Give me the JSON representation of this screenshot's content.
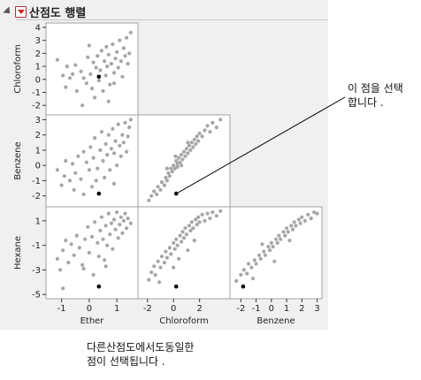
{
  "report": {
    "title": "산점도 행렬",
    "menu_icon": "red-triangle-menu-icon",
    "disclosure_icon": "disclosure-triangle-icon"
  },
  "annotation": {
    "line1": "이 점을 선택",
    "line2": "합니다 ."
  },
  "caption": {
    "line1": "다른산점도에서도동일한",
    "line2": "점이 선택됩니다 ."
  },
  "colors": {
    "point": "#a6a6a6",
    "selected": "#000000",
    "background": "#f0f0f0"
  },
  "chart_data": {
    "type": "scatter",
    "title": "산점도 행렬",
    "variables": [
      "Chloroform",
      "Benzene",
      "Hexane"
    ],
    "columns": [
      "Ether",
      "Chloroform",
      "Benzene"
    ],
    "axes": {
      "Ether": {
        "range": [
          -1.5,
          1.7
        ],
        "ticks": [
          -1,
          0,
          1
        ]
      },
      "Chloroform": {
        "range": [
          -2.6,
          4.2
        ],
        "ticks": [
          -2,
          0,
          2
        ],
        "ticks_y": [
          -2,
          -1,
          0,
          1,
          2,
          3,
          4
        ]
      },
      "Benzene": {
        "range": [
          -2.6,
          3.2
        ],
        "ticks": [
          -2,
          -1,
          0,
          1,
          2,
          3
        ],
        "ticks_y": [
          -2,
          -1,
          0,
          1,
          2,
          3
        ]
      },
      "Hexane": {
        "range": [
          -5.2,
          2.0
        ],
        "ticks_y": [
          -5,
          -3,
          -1,
          1
        ]
      }
    },
    "selected_point": {
      "Ether": 0.35,
      "Chloroform": 0.2,
      "Benzene": -1.85,
      "Hexane": -4.35
    },
    "panels": [
      {
        "x": "Ether",
        "y": "Chloroform",
        "points": [
          [
            -1.15,
            1.5
          ],
          [
            -0.95,
            0.3
          ],
          [
            -0.85,
            -0.6
          ],
          [
            -0.7,
            0.1
          ],
          [
            -0.6,
            0.4
          ],
          [
            -0.5,
            1.1
          ],
          [
            -0.45,
            -0.9
          ],
          [
            -0.3,
            0.6
          ],
          [
            -0.2,
            0.1
          ],
          [
            -0.1,
            -0.3
          ],
          [
            -0.05,
            1.7
          ],
          [
            0.0,
            2.6
          ],
          [
            0.05,
            0.4
          ],
          [
            0.1,
            -0.7
          ],
          [
            0.15,
            1.3
          ],
          [
            0.2,
            -1.4
          ],
          [
            0.25,
            0.9
          ],
          [
            0.3,
            1.8
          ],
          [
            0.35,
            -0.1
          ],
          [
            0.4,
            0.7
          ],
          [
            0.45,
            2.2
          ],
          [
            0.5,
            -0.9
          ],
          [
            0.55,
            1.4
          ],
          [
            0.6,
            0.3
          ],
          [
            0.62,
            2.5
          ],
          [
            0.65,
            1.0
          ],
          [
            0.7,
            1.9
          ],
          [
            0.75,
            -0.4
          ],
          [
            0.8,
            1.2
          ],
          [
            0.85,
            2.7
          ],
          [
            0.9,
            0.5
          ],
          [
            0.95,
            1.6
          ],
          [
            1.0,
            2.1
          ],
          [
            1.05,
            0.9
          ],
          [
            1.1,
            3.0
          ],
          [
            1.15,
            1.4
          ],
          [
            1.2,
            0.2
          ],
          [
            1.25,
            2.4
          ],
          [
            1.3,
            1.8
          ],
          [
            1.35,
            3.2
          ],
          [
            1.4,
            1.2
          ],
          [
            1.45,
            2.0
          ],
          [
            1.5,
            3.6
          ],
          [
            -0.25,
            -2.0
          ],
          [
            0.7,
            -1.7
          ],
          [
            0.9,
            -0.3
          ],
          [
            -0.8,
            1.0
          ]
        ]
      },
      {
        "x": "Ether",
        "y": "Benzene",
        "points": [
          [
            -1.15,
            -0.3
          ],
          [
            -1.0,
            -1.3
          ],
          [
            -0.9,
            -0.7
          ],
          [
            -0.85,
            0.3
          ],
          [
            -0.7,
            -1.0
          ],
          [
            -0.6,
            0.1
          ],
          [
            -0.5,
            -0.5
          ],
          [
            -0.4,
            0.6
          ],
          [
            -0.3,
            -0.9
          ],
          [
            -0.2,
            0.9
          ],
          [
            -0.1,
            0.2
          ],
          [
            0.0,
            -0.3
          ],
          [
            0.05,
            1.2
          ],
          [
            0.1,
            -1.4
          ],
          [
            0.15,
            0.5
          ],
          [
            0.2,
            1.8
          ],
          [
            0.3,
            -0.2
          ],
          [
            0.4,
            1.0
          ],
          [
            0.45,
            2.2
          ],
          [
            0.5,
            0.3
          ],
          [
            0.55,
            -0.8
          ],
          [
            0.6,
            1.4
          ],
          [
            0.65,
            0.7
          ],
          [
            0.7,
            2.0
          ],
          [
            0.75,
            -0.3
          ],
          [
            0.8,
            1.1
          ],
          [
            0.85,
            2.4
          ],
          [
            0.9,
            0.8
          ],
          [
            0.95,
            1.6
          ],
          [
            1.0,
            0.0
          ],
          [
            1.05,
            2.7
          ],
          [
            1.1,
            1.3
          ],
          [
            1.15,
            0.6
          ],
          [
            1.2,
            2.0
          ],
          [
            1.25,
            1.5
          ],
          [
            1.3,
            2.8
          ],
          [
            1.35,
            0.9
          ],
          [
            1.4,
            1.9
          ],
          [
            1.45,
            2.5
          ],
          [
            1.5,
            3.0
          ],
          [
            -0.55,
            -1.6
          ],
          [
            0.25,
            -1.0
          ],
          [
            0.9,
            -1.2
          ],
          [
            -0.2,
            -1.9
          ]
        ]
      },
      {
        "x": "Chloroform",
        "y": "Benzene",
        "points": [
          [
            -1.9,
            -2.3
          ],
          [
            -1.7,
            -2.0
          ],
          [
            -1.5,
            -1.7
          ],
          [
            -1.3,
            -1.9
          ],
          [
            -1.2,
            -1.4
          ],
          [
            -1.0,
            -1.6
          ],
          [
            -0.9,
            -1.1
          ],
          [
            -0.7,
            -1.3
          ],
          [
            -0.6,
            -0.8
          ],
          [
            -0.5,
            -1.0
          ],
          [
            -0.4,
            -0.5
          ],
          [
            -0.3,
            -0.7
          ],
          [
            -0.2,
            -0.2
          ],
          [
            -0.1,
            -0.4
          ],
          [
            0.0,
            0.0
          ],
          [
            0.1,
            -0.2
          ],
          [
            0.2,
            0.3
          ],
          [
            0.3,
            0.1
          ],
          [
            0.4,
            0.5
          ],
          [
            0.5,
            0.2
          ],
          [
            0.6,
            0.7
          ],
          [
            0.7,
            0.4
          ],
          [
            0.8,
            0.9
          ],
          [
            0.9,
            0.6
          ],
          [
            1.0,
            1.1
          ],
          [
            1.1,
            0.8
          ],
          [
            1.2,
            1.3
          ],
          [
            1.3,
            1.0
          ],
          [
            1.4,
            1.5
          ],
          [
            1.5,
            1.2
          ],
          [
            1.6,
            1.7
          ],
          [
            1.7,
            1.4
          ],
          [
            1.8,
            1.9
          ],
          [
            1.9,
            1.6
          ],
          [
            2.0,
            2.1
          ],
          [
            2.2,
            1.9
          ],
          [
            2.4,
            2.3
          ],
          [
            2.6,
            2.6
          ],
          [
            2.8,
            2.2
          ],
          [
            3.0,
            2.8
          ],
          [
            3.3,
            2.5
          ],
          [
            3.6,
            3.0
          ],
          [
            0.3,
            -0.1
          ],
          [
            0.15,
            0.6
          ],
          [
            0.6,
            0.0
          ],
          [
            1.1,
            1.5
          ],
          [
            -0.5,
            -0.2
          ]
        ]
      },
      {
        "x": "Ether",
        "y": "Hexane",
        "points": [
          [
            -1.15,
            -2.1
          ],
          [
            -1.05,
            -3.0
          ],
          [
            -0.95,
            -1.4
          ],
          [
            -0.85,
            -0.6
          ],
          [
            -0.75,
            -2.4
          ],
          [
            -0.65,
            -0.9
          ],
          [
            -0.55,
            -1.8
          ],
          [
            -0.45,
            -0.2
          ],
          [
            -0.35,
            -1.2
          ],
          [
            -0.25,
            -2.6
          ],
          [
            -0.15,
            -0.5
          ],
          [
            -0.05,
            0.5
          ],
          [
            0.0,
            -1.6
          ],
          [
            0.1,
            -0.3
          ],
          [
            0.15,
            -3.4
          ],
          [
            0.2,
            0.9
          ],
          [
            0.3,
            -0.8
          ],
          [
            0.35,
            -1.9
          ],
          [
            0.4,
            0.2
          ],
          [
            0.45,
            1.3
          ],
          [
            0.5,
            -0.5
          ],
          [
            0.55,
            -2.2
          ],
          [
            0.6,
            0.6
          ],
          [
            0.65,
            -1.0
          ],
          [
            0.7,
            1.6
          ],
          [
            0.75,
            -0.1
          ],
          [
            0.8,
            0.8
          ],
          [
            0.85,
            -1.3
          ],
          [
            0.9,
            1.1
          ],
          [
            0.95,
            0.3
          ],
          [
            1.0,
            1.7
          ],
          [
            1.05,
            -0.4
          ],
          [
            1.1,
            0.7
          ],
          [
            1.15,
            1.3
          ],
          [
            1.2,
            0.0
          ],
          [
            1.25,
            1.0
          ],
          [
            1.3,
            1.6
          ],
          [
            1.35,
            0.4
          ],
          [
            1.4,
            1.2
          ],
          [
            1.5,
            0.8
          ],
          [
            -0.95,
            -4.5
          ],
          [
            -0.2,
            -2.9
          ],
          [
            0.6,
            -2.7
          ]
        ]
      },
      {
        "x": "Chloroform",
        "y": "Hexane",
        "points": [
          [
            -1.9,
            -3.8
          ],
          [
            -1.7,
            -3.2
          ],
          [
            -1.5,
            -2.7
          ],
          [
            -1.4,
            -3.4
          ],
          [
            -1.2,
            -2.3
          ],
          [
            -1.0,
            -2.8
          ],
          [
            -0.9,
            -1.9
          ],
          [
            -0.7,
            -2.4
          ],
          [
            -0.6,
            -1.5
          ],
          [
            -0.5,
            -2.0
          ],
          [
            -0.3,
            -1.2
          ],
          [
            -0.2,
            -1.7
          ],
          [
            0.0,
            -0.8
          ],
          [
            0.1,
            -1.3
          ],
          [
            0.2,
            -0.5
          ],
          [
            0.3,
            -1.0
          ],
          [
            0.5,
            -0.2
          ],
          [
            0.6,
            -0.7
          ],
          [
            0.7,
            0.1
          ],
          [
            0.8,
            -0.4
          ],
          [
            0.9,
            0.4
          ],
          [
            1.0,
            -0.1
          ],
          [
            1.2,
            0.6
          ],
          [
            1.3,
            0.2
          ],
          [
            1.4,
            0.9
          ],
          [
            1.5,
            0.4
          ],
          [
            1.7,
            1.1
          ],
          [
            1.8,
            0.7
          ],
          [
            1.9,
            1.3
          ],
          [
            2.0,
            0.9
          ],
          [
            2.2,
            1.5
          ],
          [
            2.4,
            1.0
          ],
          [
            2.6,
            1.6
          ],
          [
            2.8,
            1.2
          ],
          [
            3.0,
            1.7
          ],
          [
            3.3,
            1.4
          ],
          [
            3.6,
            1.8
          ],
          [
            0.4,
            -2.1
          ],
          [
            1.1,
            -1.4
          ],
          [
            -1.1,
            -4.0
          ],
          [
            0.0,
            -2.8
          ],
          [
            1.6,
            -0.6
          ]
        ]
      },
      {
        "x": "Benzene",
        "y": "Hexane",
        "points": [
          [
            -2.3,
            -3.9
          ],
          [
            -2.0,
            -3.4
          ],
          [
            -1.8,
            -3.0
          ],
          [
            -1.6,
            -3.3
          ],
          [
            -1.5,
            -2.5
          ],
          [
            -1.3,
            -2.8
          ],
          [
            -1.1,
            -2.2
          ],
          [
            -1.0,
            -2.5
          ],
          [
            -0.8,
            -1.8
          ],
          [
            -0.7,
            -2.1
          ],
          [
            -0.5,
            -1.5
          ],
          [
            -0.4,
            -1.8
          ],
          [
            -0.2,
            -1.1
          ],
          [
            -0.1,
            -1.4
          ],
          [
            0.0,
            -0.8
          ],
          [
            0.1,
            -1.1
          ],
          [
            0.3,
            -0.5
          ],
          [
            0.4,
            -0.8
          ],
          [
            0.5,
            -0.2
          ],
          [
            0.6,
            -0.5
          ],
          [
            0.8,
            0.1
          ],
          [
            0.9,
            -0.2
          ],
          [
            1.0,
            0.4
          ],
          [
            1.1,
            0.1
          ],
          [
            1.3,
            0.6
          ],
          [
            1.4,
            0.3
          ],
          [
            1.5,
            0.9
          ],
          [
            1.6,
            0.6
          ],
          [
            1.8,
            1.1
          ],
          [
            1.9,
            0.8
          ],
          [
            2.0,
            1.3
          ],
          [
            2.2,
            1.0
          ],
          [
            2.4,
            1.5
          ],
          [
            2.6,
            1.2
          ],
          [
            2.8,
            1.7
          ],
          [
            3.0,
            1.6
          ],
          [
            -1.2,
            -3.7
          ],
          [
            0.2,
            -2.3
          ],
          [
            -0.6,
            -0.9
          ],
          [
            1.2,
            -0.6
          ]
        ]
      }
    ]
  }
}
